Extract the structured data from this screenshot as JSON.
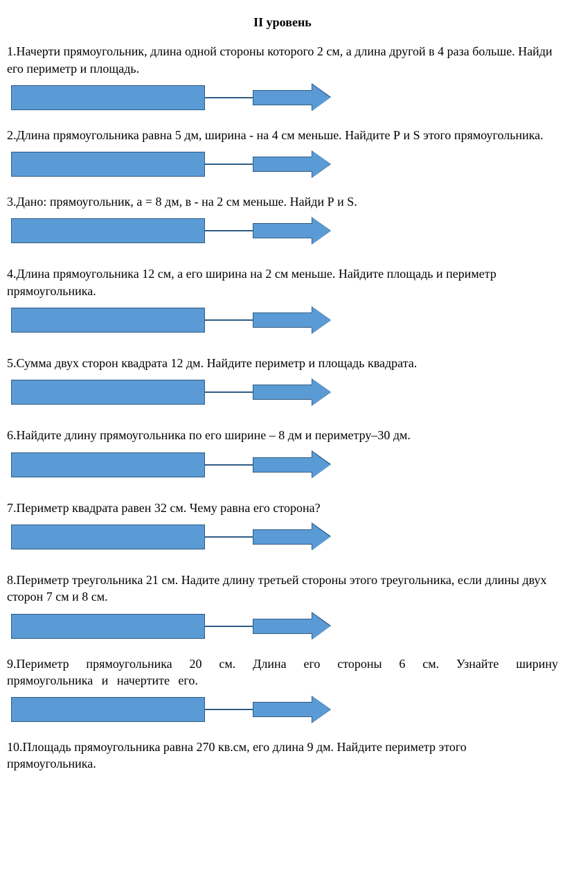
{
  "title": "II уровень",
  "colors": {
    "shape_fill": "#5b9bd5",
    "shape_border": "#2f5b84",
    "background": "#ffffff",
    "text": "#000000"
  },
  "shape": {
    "rect_width": 280,
    "rect_height": 36,
    "connector_width": 70,
    "arrow_shaft_width": 86,
    "arrow_shaft_height": 22,
    "arrow_head_size": 26,
    "border_width": 1.5
  },
  "tasks": [
    {
      "number": "1.",
      "text": "Начерти прямоугольник, длина одной стороны которого 2 см, а длина другой в 4 раза больше. Найди его периметр и площадь.",
      "has_shape": true,
      "justify": false
    },
    {
      "number": "2.",
      "text": "Длина  прямоугольника равна 5 дм, ширина - на 4 см меньше.  Найдите Р и S этого прямоугольника.",
      "has_shape": true,
      "justify": false
    },
    {
      "number": "3.",
      "text": "Дано: прямоугольник, а = 8 дм, в - на 2 см меньше.  Найди Р и S.",
      "has_shape": true,
      "justify": false,
      "extra_margin": true
    },
    {
      "number": "4.",
      "text": "Длина прямоугольника 12 см, а его ширина на 2 см меньше. Найдите площадь и периметр прямоугольника.",
      "has_shape": true,
      "justify": false,
      "extra_margin": true
    },
    {
      "number": "5.",
      "text": "Сумма двух сторон квадрата 12 дм. Найдите периметр и площадь квадрата.",
      "has_shape": true,
      "justify": false,
      "extra_margin": true
    },
    {
      "number": "6.",
      "text": "Найдите длину прямоугольника по его ширине – 8 дм и периметру–30 дм.",
      "has_shape": true,
      "justify": false,
      "extra_margin": true
    },
    {
      "number": "7.",
      "text": "Периметр квадрата равен 32 см. Чему равна его сторона?",
      "has_shape": true,
      "justify": false,
      "extra_margin": true
    },
    {
      "number": "8.",
      "text": "Периметр треугольника 21 см. Надите длину третьей стороны этого треугольника, если длины двух сторон 7 см и 8 см.",
      "has_shape": true,
      "justify": false
    },
    {
      "number": "9.",
      "text": "Периметр прямоугольника 20 см. Длина его стороны 6 см. Узнайте ширину прямоугольника и начертите его.",
      "has_shape": true,
      "justify": true
    },
    {
      "number": "10.",
      "text": "Площадь прямоугольника равна 270 кв.см, его длина 9 дм. Найдите периметр этого прямоугольника.",
      "has_shape": false,
      "justify": false
    }
  ]
}
